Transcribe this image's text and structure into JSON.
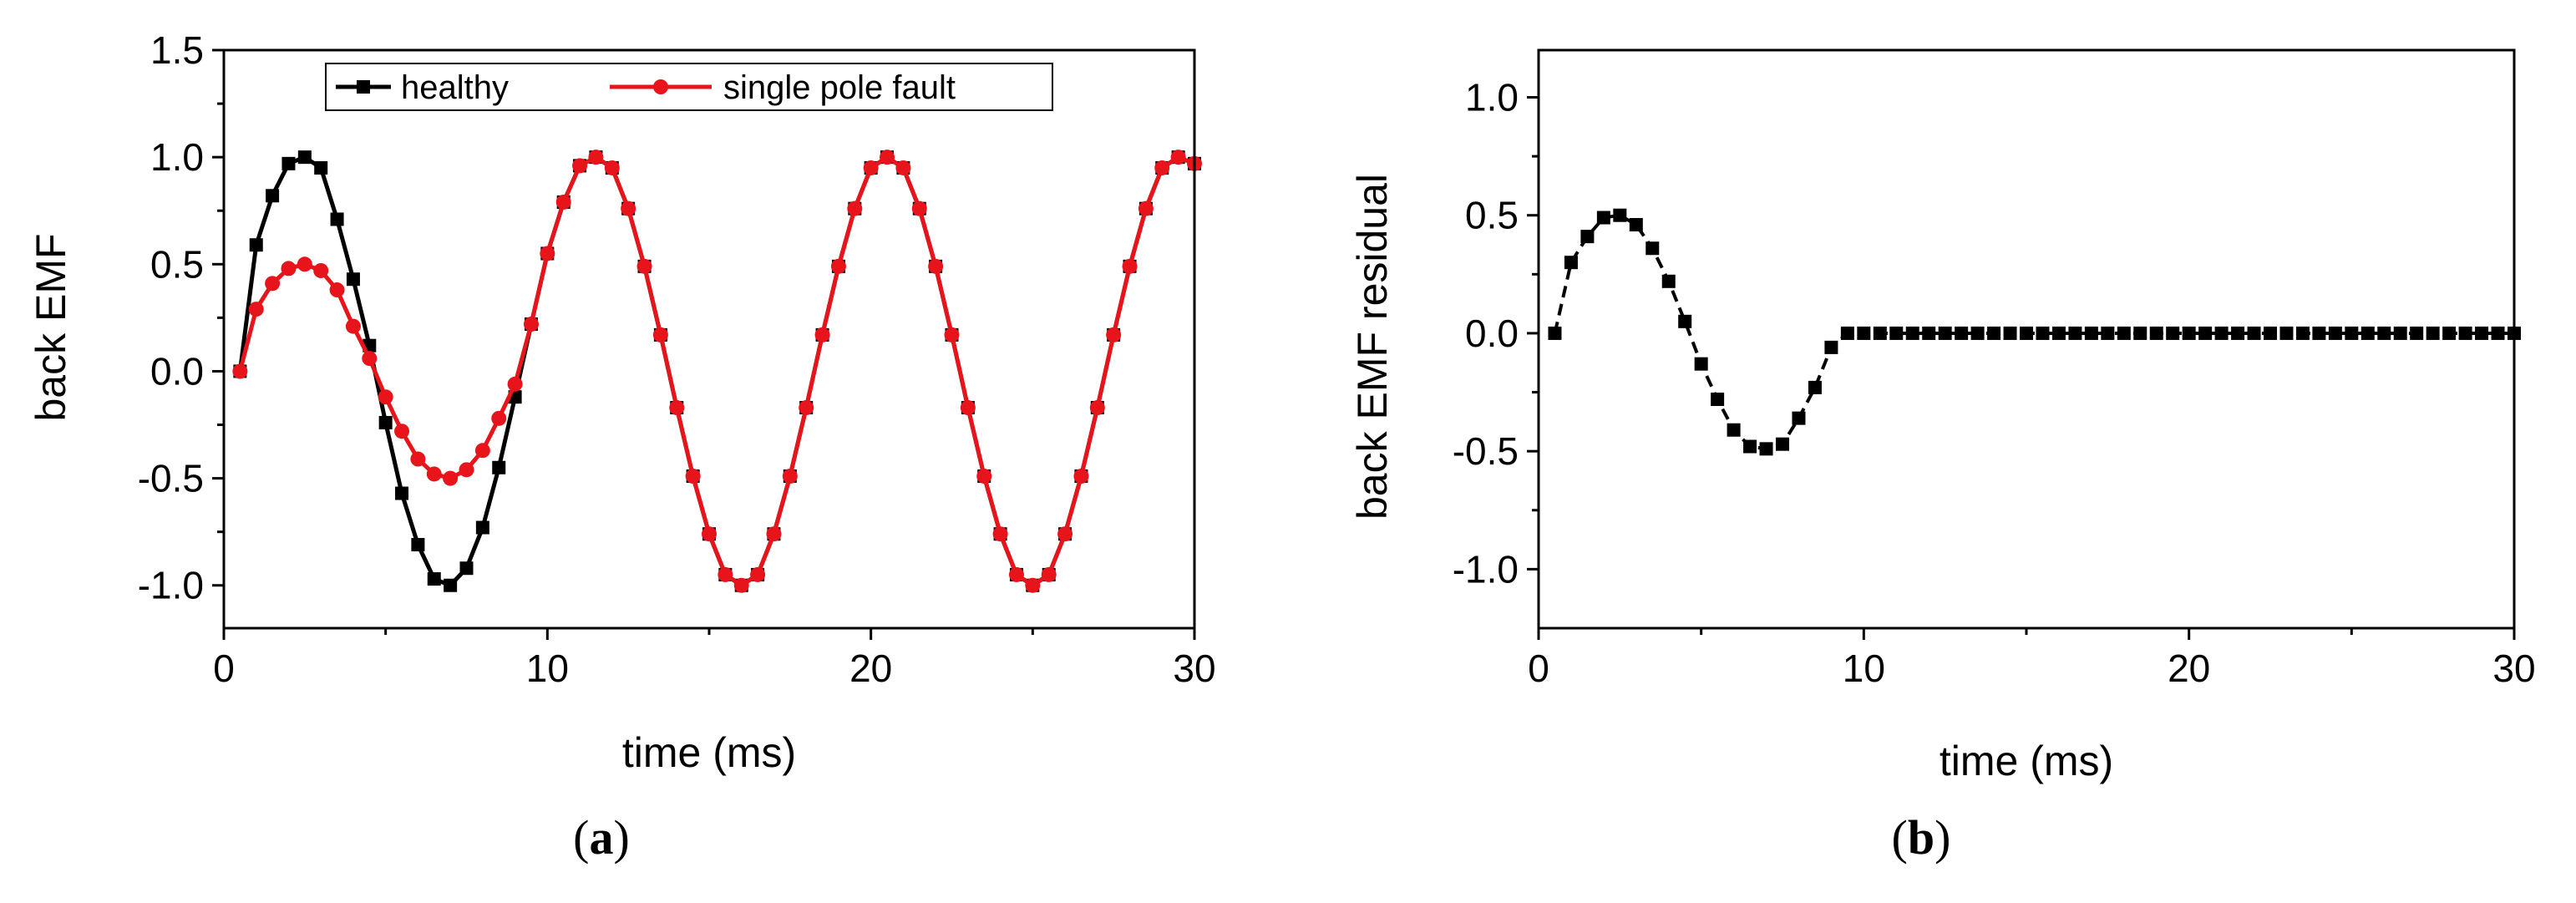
{
  "chart_data": [
    {
      "type": "line",
      "panel_label": "(a)",
      "panel_letter": "a",
      "xlabel": "time (ms)",
      "ylabel": "back EMF",
      "xlim": [
        0,
        30
      ],
      "ylim": [
        -1.2,
        1.5
      ],
      "xticks": [
        0,
        10,
        20,
        30
      ],
      "yticks": [
        1.5,
        1.0,
        0.5,
        0.0,
        -0.5,
        -1.0
      ],
      "ytick_labels": [
        "1.5",
        "1.0",
        "0.5",
        "0.0",
        "-0.5",
        "-1.0"
      ],
      "grid": false,
      "legend_placement": "top-center",
      "series": [
        {
          "name": "healthy",
          "color": "#000000",
          "marker": "square",
          "x": [
            0.5,
            1,
            1.5,
            2,
            2.5,
            3,
            3.5,
            4,
            4.5,
            5,
            5.5,
            6,
            6.5,
            7,
            7.5,
            8,
            8.5,
            9,
            9.5,
            10,
            10.5,
            11,
            11.5,
            12,
            12.5,
            13,
            13.5,
            14,
            14.5,
            15,
            15.5,
            16,
            16.5,
            17,
            17.5,
            18,
            18.5,
            19,
            19.5,
            20,
            20.5,
            21,
            21.5,
            22,
            22.5,
            23,
            23.5,
            24,
            24.5,
            25,
            25.5,
            26,
            26.5,
            27,
            27.5,
            28,
            28.5,
            29,
            29.5,
            30
          ],
          "y": [
            0.0,
            0.59,
            0.82,
            0.97,
            1.0,
            0.95,
            0.71,
            0.43,
            0.12,
            -0.24,
            -0.57,
            -0.81,
            -0.97,
            -1.0,
            -0.92,
            -0.73,
            -0.45,
            -0.12,
            0.22,
            0.55,
            0.79,
            0.96,
            1.0,
            0.95,
            0.76,
            0.49,
            0.17,
            -0.17,
            -0.49,
            -0.76,
            -0.95,
            -1.0,
            -0.95,
            -0.76,
            -0.49,
            -0.17,
            0.17,
            0.49,
            0.76,
            0.95,
            1.0,
            0.95,
            0.76,
            0.49,
            0.17,
            -0.17,
            -0.49,
            -0.76,
            -0.95,
            -1.0,
            -0.95,
            -0.76,
            -0.49,
            -0.17,
            0.17,
            0.49,
            0.76,
            0.95,
            1.0,
            0.97
          ]
        },
        {
          "name": "single pole fault",
          "color": "#e8141b",
          "marker": "circle",
          "x": [
            0.5,
            1,
            1.5,
            2,
            2.5,
            3,
            3.5,
            4,
            4.5,
            5,
            5.5,
            6,
            6.5,
            7,
            7.5,
            8,
            8.5,
            9,
            9.5,
            10,
            10.5,
            11,
            11.5,
            12,
            12.5,
            13,
            13.5,
            14,
            14.5,
            15,
            15.5,
            16,
            16.5,
            17,
            17.5,
            18,
            18.5,
            19,
            19.5,
            20,
            20.5,
            21,
            21.5,
            22,
            22.5,
            23,
            23.5,
            24,
            24.5,
            25,
            25.5,
            26,
            26.5,
            27,
            27.5,
            28,
            28.5,
            29,
            29.5,
            30
          ],
          "y": [
            0.0,
            0.29,
            0.41,
            0.48,
            0.5,
            0.47,
            0.38,
            0.21,
            0.06,
            -0.12,
            -0.28,
            -0.41,
            -0.48,
            -0.5,
            -0.46,
            -0.37,
            -0.22,
            -0.06,
            0.22,
            0.55,
            0.79,
            0.96,
            1.0,
            0.95,
            0.76,
            0.49,
            0.17,
            -0.17,
            -0.49,
            -0.76,
            -0.95,
            -1.0,
            -0.95,
            -0.76,
            -0.49,
            -0.17,
            0.17,
            0.49,
            0.76,
            0.95,
            1.0,
            0.95,
            0.76,
            0.49,
            0.17,
            -0.17,
            -0.49,
            -0.76,
            -0.95,
            -1.0,
            -0.95,
            -0.76,
            -0.49,
            -0.17,
            0.17,
            0.49,
            0.76,
            0.95,
            1.0,
            0.97
          ]
        }
      ]
    },
    {
      "type": "line",
      "panel_label": "(b)",
      "panel_letter": "b",
      "xlabel": "time (ms)",
      "ylabel": "back EMF residual",
      "xlim": [
        0,
        30
      ],
      "ylim": [
        -1.25,
        1.2
      ],
      "xticks": [
        0,
        10,
        20,
        30
      ],
      "yticks": [
        1.0,
        0.5,
        0.0,
        -0.5,
        -1.0
      ],
      "ytick_labels": [
        "1.0",
        "0.5",
        "0.0",
        "-0.5",
        "-1.0"
      ],
      "grid": false,
      "series": [
        {
          "color": "#000000",
          "marker": "square",
          "line_style": "dashed",
          "x": [
            0.5,
            1,
            1.5,
            2,
            2.5,
            3,
            3.5,
            4,
            4.5,
            5,
            5.5,
            6,
            6.5,
            7,
            7.5,
            8,
            8.5,
            9,
            9.5,
            10,
            10.5,
            11,
            11.5,
            12,
            12.5,
            13,
            13.5,
            14,
            14.5,
            15,
            15.5,
            16,
            16.5,
            17,
            17.5,
            18,
            18.5,
            19,
            19.5,
            20,
            20.5,
            21,
            21.5,
            22,
            22.5,
            23,
            23.5,
            24,
            24.5,
            25,
            25.5,
            26,
            26.5,
            27,
            27.5,
            28,
            28.5,
            29,
            29.5,
            30
          ],
          "y": [
            0.0,
            0.3,
            0.41,
            0.49,
            0.5,
            0.46,
            0.36,
            0.22,
            0.05,
            -0.13,
            -0.28,
            -0.41,
            -0.48,
            -0.49,
            -0.47,
            -0.36,
            -0.23,
            -0.06,
            0.0,
            0.0,
            0.0,
            0.0,
            0.0,
            0.0,
            0.0,
            0.0,
            0.0,
            0.0,
            0.0,
            0.0,
            0.0,
            0.0,
            0.0,
            0.0,
            0.0,
            0.0,
            0.0,
            0.0,
            0.0,
            0.0,
            0.0,
            0.0,
            0.0,
            0.0,
            0.0,
            0.0,
            0.0,
            0.0,
            0.0,
            0.0,
            0.0,
            0.0,
            0.0,
            0.0,
            0.0,
            0.0,
            0.0,
            0.0,
            0.0,
            0.0
          ]
        }
      ]
    }
  ]
}
